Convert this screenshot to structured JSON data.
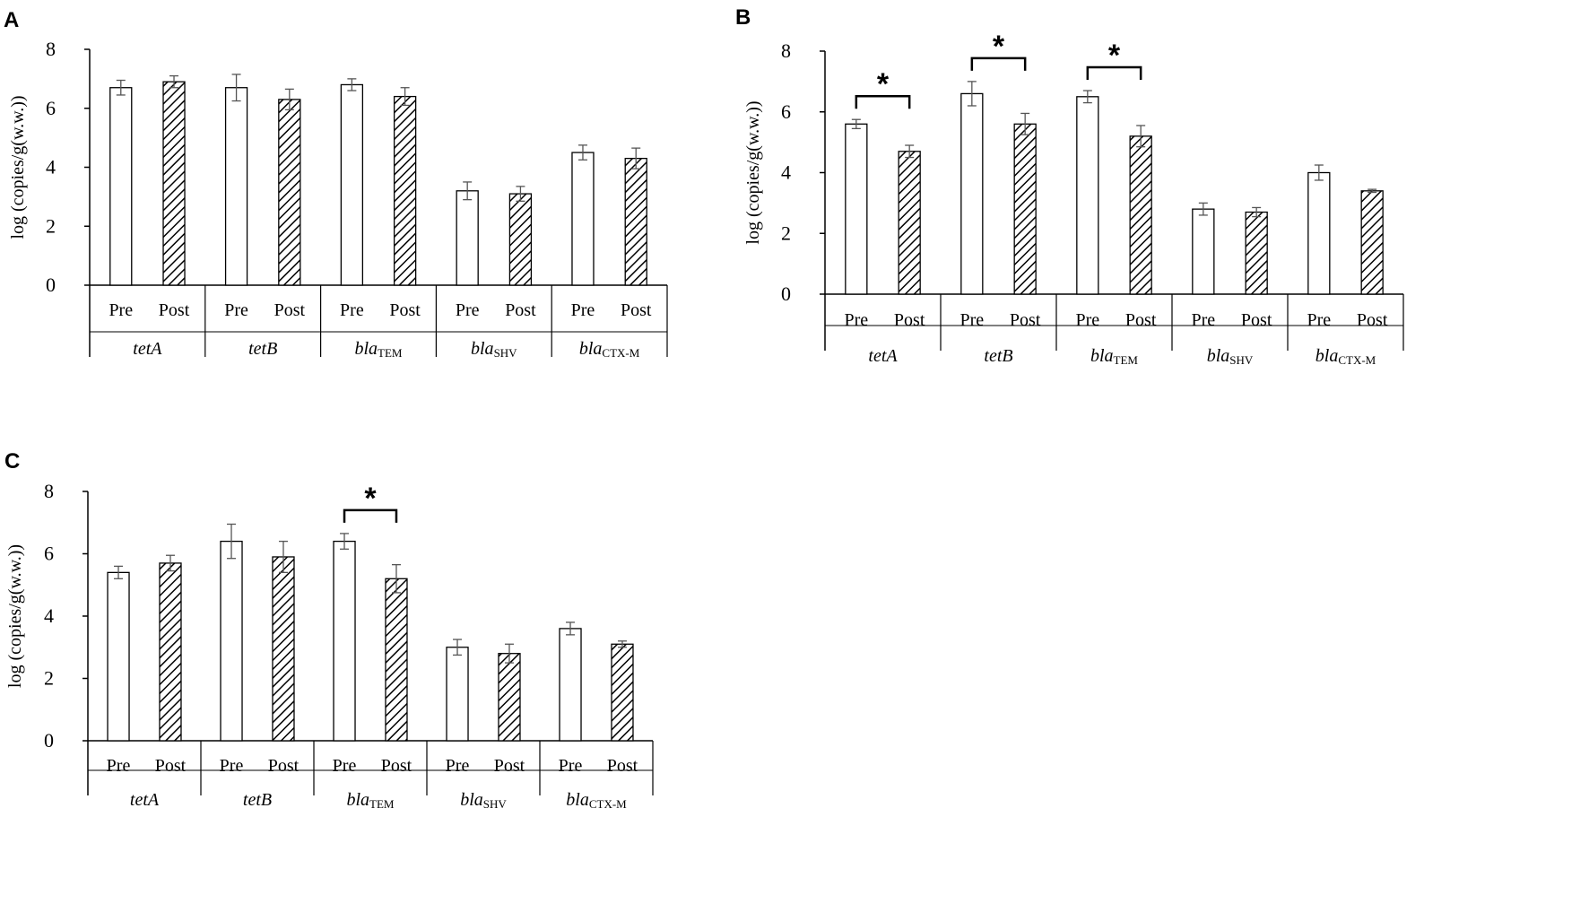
{
  "chart_data": [
    {
      "panel": "A",
      "type": "bar",
      "ylabel": "log (copies/g(w.w.))",
      "ylim": [
        0,
        8
      ],
      "yticks": [
        "0",
        "2",
        "4",
        "6",
        "8"
      ],
      "groups": [
        {
          "gene": "tet",
          "gene_suffix": "A",
          "sub": ""
        },
        {
          "gene": "tet",
          "gene_suffix": "B",
          "sub": ""
        },
        {
          "gene": "bla",
          "gene_suffix": "",
          "sub": "TEM"
        },
        {
          "gene": "bla",
          "gene_suffix": "",
          "sub": "SHV"
        },
        {
          "gene": "bla",
          "gene_suffix": "",
          "sub": "CTX-M"
        }
      ],
      "conditions": [
        "Pre",
        "Post"
      ],
      "series": [
        {
          "name": "Pre",
          "values": [
            6.7,
            6.7,
            6.8,
            3.2,
            4.5
          ],
          "errors": [
            0.25,
            0.45,
            0.2,
            0.3,
            0.25
          ]
        },
        {
          "name": "Post",
          "values": [
            6.9,
            6.3,
            6.4,
            3.1,
            4.3
          ],
          "errors": [
            0.2,
            0.35,
            0.3,
            0.25,
            0.35
          ]
        }
      ],
      "significance": []
    },
    {
      "panel": "B",
      "type": "bar",
      "ylabel": "log (copies/g(w.w.))",
      "ylim": [
        0,
        8
      ],
      "yticks": [
        "0",
        "2",
        "4",
        "6",
        "8"
      ],
      "groups": [
        {
          "gene": "tet",
          "gene_suffix": "A",
          "sub": ""
        },
        {
          "gene": "tet",
          "gene_suffix": "B",
          "sub": ""
        },
        {
          "gene": "bla",
          "gene_suffix": "",
          "sub": "TEM"
        },
        {
          "gene": "bla",
          "gene_suffix": "",
          "sub": "SHV"
        },
        {
          "gene": "bla",
          "gene_suffix": "",
          "sub": "CTX-M"
        }
      ],
      "conditions": [
        "Pre",
        "Post"
      ],
      "series": [
        {
          "name": "Pre",
          "values": [
            5.6,
            6.6,
            6.5,
            2.8,
            4.0
          ],
          "errors": [
            0.15,
            0.4,
            0.2,
            0.2,
            0.25
          ]
        },
        {
          "name": "Post",
          "values": [
            4.7,
            5.6,
            5.2,
            2.7,
            3.4
          ],
          "errors": [
            0.2,
            0.35,
            0.35,
            0.15,
            0.05
          ]
        }
      ],
      "significance": [
        {
          "group": 0,
          "mark": "*"
        },
        {
          "group": 1,
          "mark": "*"
        },
        {
          "group": 2,
          "mark": "*"
        }
      ]
    },
    {
      "panel": "C",
      "type": "bar",
      "ylabel": "log (copies/g(w.w.))",
      "ylim": [
        0,
        8
      ],
      "yticks": [
        "0",
        "2",
        "4",
        "6",
        "8"
      ],
      "groups": [
        {
          "gene": "tet",
          "gene_suffix": "A",
          "sub": ""
        },
        {
          "gene": "tet",
          "gene_suffix": "B",
          "sub": ""
        },
        {
          "gene": "bla",
          "gene_suffix": "",
          "sub": "TEM"
        },
        {
          "gene": "bla",
          "gene_suffix": "",
          "sub": "SHV"
        },
        {
          "gene": "bla",
          "gene_suffix": "",
          "sub": "CTX-M"
        }
      ],
      "conditions": [
        "Pre",
        "Post"
      ],
      "series": [
        {
          "name": "Pre",
          "values": [
            5.4,
            6.4,
            6.4,
            3.0,
            3.6
          ],
          "errors": [
            0.2,
            0.55,
            0.25,
            0.25,
            0.2
          ]
        },
        {
          "name": "Post",
          "values": [
            5.7,
            5.9,
            5.2,
            2.8,
            3.1
          ],
          "errors": [
            0.25,
            0.5,
            0.45,
            0.3,
            0.1
          ]
        }
      ],
      "significance": [
        {
          "group": 2,
          "mark": "*"
        }
      ]
    }
  ]
}
